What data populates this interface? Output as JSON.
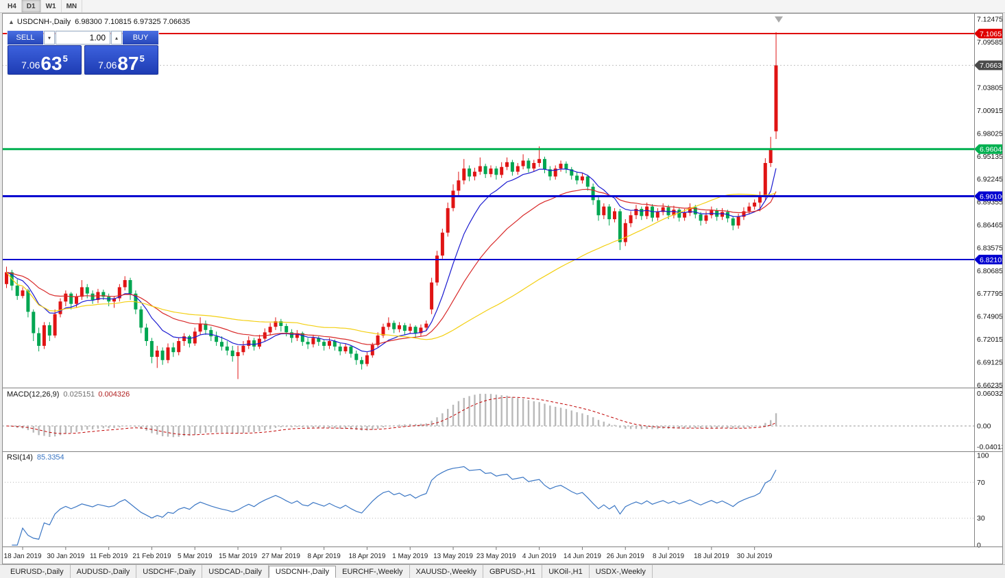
{
  "window": {
    "periods": [
      "H4",
      "D1",
      "W1",
      "MN"
    ],
    "active_period": "D1"
  },
  "chart_header": {
    "collapse_icon": "▲",
    "symbol_title": "USDCNH-,Daily",
    "ohlc": "6.98300 7.10815 6.97325 7.06635"
  },
  "trade_panel": {
    "sell_label": "SELL",
    "buy_label": "BUY",
    "volume": "1.00",
    "volume_down_icon": "▾",
    "volume_up_icon": "▴",
    "sell_price": {
      "prefix": "7.06",
      "big": "63",
      "sup": "5"
    },
    "buy_price": {
      "prefix": "7.06",
      "big": "87",
      "sup": "5"
    }
  },
  "chart_data": {
    "type": "candlestick",
    "symbol": "USDCNH-",
    "timeframe": "Daily",
    "up_color": "#e01414",
    "down_color": "#00a651",
    "price_axis": {
      "min": 6.6592,
      "max": 7.1316,
      "ticks": [
        "7.12475",
        "7.09585",
        "7.06695",
        "7.03805",
        "7.00915",
        "6.98025",
        "6.95135",
        "6.92245",
        "6.89355",
        "6.86465",
        "6.83575",
        "6.80685",
        "6.77795",
        "6.74905",
        "6.72015",
        "6.69125",
        "6.66235"
      ]
    },
    "hlines": [
      {
        "price": 7.10651,
        "label": "7.10651",
        "color": "#df0000",
        "width": 2
      },
      {
        "price": 6.96044,
        "label": "6.96044",
        "color": "#00b050",
        "width": 3
      },
      {
        "price": 6.901,
        "label": "6.90100",
        "color": "#0000d0",
        "width": 3
      },
      {
        "price": 6.82103,
        "label": "6.82103",
        "color": "#0000d0",
        "width": 2
      }
    ],
    "bid_tag": {
      "price": 7.06635,
      "label": "7.06635",
      "color": "#4a4a4a"
    },
    "moving_averages": [
      {
        "period": 10,
        "method": "ema",
        "color": "#1a1ad0"
      },
      {
        "period": 25,
        "method": "ema",
        "color": "#d82828"
      },
      {
        "period": 55,
        "method": "sma",
        "color": "#f3cf10"
      }
    ],
    "x_labels": [
      {
        "i": 3,
        "t": "18 Jan 2019"
      },
      {
        "i": 11,
        "t": "30 Jan 2019"
      },
      {
        "i": 19,
        "t": "11 Feb 2019"
      },
      {
        "i": 27,
        "t": "21 Feb 2019"
      },
      {
        "i": 35,
        "t": "5 Mar 2019"
      },
      {
        "i": 43,
        "t": "15 Mar 2019"
      },
      {
        "i": 51,
        "t": "27 Mar 2019"
      },
      {
        "i": 59,
        "t": "8 Apr 2019"
      },
      {
        "i": 67,
        "t": "18 Apr 2019"
      },
      {
        "i": 75,
        "t": "1 May 2019"
      },
      {
        "i": 83,
        "t": "13 May 2019"
      },
      {
        "i": 91,
        "t": "23 May 2019"
      },
      {
        "i": 99,
        "t": "4 Jun 2019"
      },
      {
        "i": 107,
        "t": "14 Jun 2019"
      },
      {
        "i": 115,
        "t": "26 Jun 2019"
      },
      {
        "i": 123,
        "t": "8 Jul 2019"
      },
      {
        "i": 131,
        "t": "18 Jul 2019"
      },
      {
        "i": 139,
        "t": "30 Jul 2019"
      }
    ],
    "candles": [
      [
        6.79,
        6.812,
        6.785,
        6.805
      ],
      [
        6.805,
        6.808,
        6.782,
        6.788
      ],
      [
        6.788,
        6.796,
        6.77,
        6.775
      ],
      [
        6.775,
        6.786,
        6.772,
        6.782
      ],
      [
        6.782,
        6.784,
        6.748,
        6.755
      ],
      [
        6.755,
        6.758,
        6.718,
        6.728
      ],
      [
        6.728,
        6.735,
        6.705,
        6.712
      ],
      [
        6.712,
        6.742,
        6.708,
        6.738
      ],
      [
        6.738,
        6.742,
        6.718,
        6.725
      ],
      [
        6.725,
        6.758,
        6.722,
        6.752
      ],
      [
        6.752,
        6.772,
        6.748,
        6.768
      ],
      [
        6.768,
        6.782,
        6.762,
        6.778
      ],
      [
        6.778,
        6.78,
        6.758,
        6.765
      ],
      [
        6.765,
        6.778,
        6.76,
        6.774
      ],
      [
        6.774,
        6.795,
        6.77,
        6.786
      ],
      [
        6.786,
        6.79,
        6.772,
        6.778
      ],
      [
        6.778,
        6.782,
        6.765,
        6.77
      ],
      [
        6.77,
        6.784,
        6.766,
        6.78
      ],
      [
        6.78,
        6.783,
        6.77,
        6.774
      ],
      [
        6.774,
        6.778,
        6.762,
        6.768
      ],
      [
        6.768,
        6.775,
        6.76,
        6.772
      ],
      [
        6.772,
        6.79,
        6.768,
        6.786
      ],
      [
        6.786,
        6.8,
        6.782,
        6.795
      ],
      [
        6.795,
        6.798,
        6.77,
        6.778
      ],
      [
        6.778,
        6.782,
        6.752,
        6.758
      ],
      [
        6.758,
        6.762,
        6.728,
        6.735
      ],
      [
        6.735,
        6.74,
        6.712,
        6.718
      ],
      [
        6.718,
        6.722,
        6.69,
        6.698
      ],
      [
        6.698,
        6.712,
        6.684,
        6.706
      ],
      [
        6.706,
        6.71,
        6.688,
        6.694
      ],
      [
        6.694,
        6.715,
        6.69,
        6.71
      ],
      [
        6.71,
        6.716,
        6.698,
        6.704
      ],
      [
        6.704,
        6.722,
        6.7,
        6.718
      ],
      [
        6.718,
        6.728,
        6.712,
        6.724
      ],
      [
        6.724,
        6.726,
        6.71,
        6.715
      ],
      [
        6.715,
        6.735,
        6.712,
        6.73
      ],
      [
        6.73,
        6.748,
        6.726,
        6.74
      ],
      [
        6.74,
        6.744,
        6.726,
        6.732
      ],
      [
        6.732,
        6.736,
        6.718,
        6.724
      ],
      [
        6.724,
        6.73,
        6.712,
        6.717
      ],
      [
        6.717,
        6.724,
        6.706,
        6.711
      ],
      [
        6.711,
        6.718,
        6.7,
        6.706
      ],
      [
        6.706,
        6.712,
        6.692,
        6.699
      ],
      [
        6.699,
        6.712,
        6.67,
        6.704
      ],
      [
        6.704,
        6.718,
        6.7,
        6.712
      ],
      [
        6.712,
        6.724,
        6.708,
        6.719
      ],
      [
        6.719,
        6.722,
        6.706,
        6.711
      ],
      [
        6.711,
        6.726,
        6.708,
        6.721
      ],
      [
        6.721,
        6.734,
        6.718,
        6.729
      ],
      [
        6.729,
        6.741,
        6.725,
        6.736
      ],
      [
        6.736,
        6.748,
        6.732,
        6.743
      ],
      [
        6.743,
        6.746,
        6.73,
        6.737
      ],
      [
        6.737,
        6.74,
        6.724,
        6.729
      ],
      [
        6.729,
        6.733,
        6.716,
        6.722
      ],
      [
        6.722,
        6.732,
        6.718,
        6.728
      ],
      [
        6.728,
        6.73,
        6.712,
        6.717
      ],
      [
        6.717,
        6.722,
        6.708,
        6.714
      ],
      [
        6.714,
        6.726,
        6.71,
        6.722
      ],
      [
        6.722,
        6.724,
        6.712,
        6.717
      ],
      [
        6.717,
        6.72,
        6.706,
        6.712
      ],
      [
        6.712,
        6.722,
        6.708,
        6.718
      ],
      [
        6.718,
        6.72,
        6.706,
        6.711
      ],
      [
        6.711,
        6.715,
        6.7,
        6.705
      ],
      [
        6.705,
        6.715,
        6.702,
        6.711
      ],
      [
        6.711,
        6.713,
        6.697,
        6.702
      ],
      [
        6.702,
        6.706,
        6.688,
        6.694
      ],
      [
        6.694,
        6.698,
        6.682,
        6.689
      ],
      [
        6.689,
        6.704,
        6.686,
        6.7
      ],
      [
        6.7,
        6.716,
        6.697,
        6.713
      ],
      [
        6.713,
        6.729,
        6.71,
        6.725
      ],
      [
        6.725,
        6.74,
        6.722,
        6.736
      ],
      [
        6.736,
        6.748,
        6.732,
        6.741
      ],
      [
        6.741,
        6.744,
        6.728,
        6.733
      ],
      [
        6.733,
        6.742,
        6.729,
        6.738
      ],
      [
        6.738,
        6.741,
        6.726,
        6.731
      ],
      [
        6.731,
        6.74,
        6.727,
        6.736
      ],
      [
        6.736,
        6.738,
        6.722,
        6.728
      ],
      [
        6.728,
        6.739,
        6.724,
        6.735
      ],
      [
        6.735,
        6.744,
        6.731,
        6.74
      ],
      [
        6.758,
        6.798,
        6.752,
        6.792
      ],
      [
        6.792,
        6.832,
        6.788,
        6.826
      ],
      [
        6.826,
        6.86,
        6.822,
        6.855
      ],
      [
        6.855,
        6.893,
        6.85,
        6.886
      ],
      [
        6.886,
        6.916,
        6.882,
        6.908
      ],
      [
        6.908,
        6.932,
        6.902,
        6.921
      ],
      [
        6.921,
        6.948,
        6.916,
        6.936
      ],
      [
        6.936,
        6.94,
        6.92,
        6.926
      ],
      [
        6.926,
        6.937,
        6.921,
        6.932
      ],
      [
        6.932,
        6.95,
        6.928,
        6.939
      ],
      [
        6.939,
        6.942,
        6.924,
        6.929
      ],
      [
        6.929,
        6.94,
        6.925,
        6.936
      ],
      [
        6.936,
        6.939,
        6.922,
        6.928
      ],
      [
        6.928,
        6.944,
        6.924,
        6.938
      ],
      [
        6.938,
        6.95,
        6.934,
        6.944
      ],
      [
        6.944,
        6.947,
        6.927,
        6.932
      ],
      [
        6.932,
        6.943,
        6.928,
        6.939
      ],
      [
        6.939,
        6.954,
        6.935,
        6.946
      ],
      [
        6.946,
        6.949,
        6.931,
        6.936
      ],
      [
        6.936,
        6.947,
        6.932,
        6.943
      ],
      [
        6.943,
        6.964,
        6.938,
        6.948
      ],
      [
        6.948,
        6.951,
        6.93,
        6.935
      ],
      [
        6.935,
        6.939,
        6.921,
        6.926
      ],
      [
        6.926,
        6.94,
        6.922,
        6.936
      ],
      [
        6.936,
        6.946,
        6.932,
        6.942
      ],
      [
        6.942,
        6.945,
        6.93,
        6.935
      ],
      [
        6.935,
        6.938,
        6.922,
        6.927
      ],
      [
        6.927,
        6.932,
        6.916,
        6.921
      ],
      [
        6.921,
        6.93,
        6.917,
        6.926
      ],
      [
        6.926,
        6.928,
        6.908,
        6.913
      ],
      [
        6.913,
        6.917,
        6.89,
        6.896
      ],
      [
        6.896,
        6.9,
        6.87,
        6.877
      ],
      [
        6.877,
        6.892,
        6.872,
        6.888
      ],
      [
        6.888,
        6.891,
        6.864,
        6.872
      ],
      [
        6.872,
        6.886,
        6.868,
        6.882
      ],
      [
        6.882,
        6.885,
        6.833,
        6.843
      ],
      [
        6.843,
        6.872,
        6.838,
        6.867
      ],
      [
        6.867,
        6.882,
        6.862,
        6.877
      ],
      [
        6.877,
        6.89,
        6.872,
        6.885
      ],
      [
        6.885,
        6.888,
        6.871,
        6.876
      ],
      [
        6.876,
        6.893,
        6.872,
        6.888
      ],
      [
        6.888,
        6.891,
        6.869,
        6.874
      ],
      [
        6.874,
        6.886,
        6.87,
        6.881
      ],
      [
        6.881,
        6.892,
        6.877,
        6.887
      ],
      [
        6.887,
        6.89,
        6.872,
        6.877
      ],
      [
        6.877,
        6.889,
        6.873,
        6.884
      ],
      [
        6.884,
        6.887,
        6.869,
        6.874
      ],
      [
        6.874,
        6.885,
        6.87,
        6.88
      ],
      [
        6.88,
        6.892,
        6.876,
        6.887
      ],
      [
        6.887,
        6.89,
        6.873,
        6.878
      ],
      [
        6.878,
        6.881,
        6.864,
        6.87
      ],
      [
        6.87,
        6.882,
        6.866,
        6.877
      ],
      [
        6.877,
        6.888,
        6.873,
        6.883
      ],
      [
        6.883,
        6.886,
        6.87,
        6.875
      ],
      [
        6.875,
        6.886,
        6.871,
        6.881
      ],
      [
        6.881,
        6.884,
        6.868,
        6.873
      ],
      [
        6.873,
        6.876,
        6.858,
        6.864
      ],
      [
        6.864,
        6.879,
        6.86,
        6.875
      ],
      [
        6.875,
        6.887,
        6.871,
        6.882
      ],
      [
        6.882,
        6.893,
        6.878,
        6.888
      ],
      [
        6.888,
        6.897,
        6.884,
        6.893
      ],
      [
        6.893,
        6.907,
        6.882,
        6.902
      ],
      [
        6.902,
        6.949,
        6.896,
        6.943
      ],
      [
        6.943,
        6.976,
        6.938,
        6.961
      ],
      [
        6.983,
        7.10815,
        6.97325,
        7.06635
      ]
    ],
    "macd": {
      "name": "MACD(12,26,9)",
      "value_main": "0.025151",
      "value_signal": "0.004326",
      "fast": 12,
      "slow": 26,
      "signal": 9,
      "axis_max": "0.060329",
      "axis_zero": "0.00",
      "axis_min": "-0.040135",
      "hist_color": "#b9b9b9",
      "signal_color": "#c00000"
    },
    "rsi": {
      "name": "RSI(14)",
      "value": "85.3354",
      "period": 14,
      "axis": [
        "100",
        "70",
        "30",
        "0"
      ],
      "levels": [
        70,
        30
      ],
      "color": "#3a76c4"
    }
  },
  "bottom_tabs": {
    "active": "USDCNH-,Daily",
    "tabs": [
      "EURUSD-,Daily",
      "AUDUSD-,Daily",
      "USDCHF-,Daily",
      "USDCAD-,Daily",
      "USDCNH-,Daily",
      "EURCHF-,Weekly",
      "XAUUSD-,Weekly",
      "GBPUSD-,H1",
      "UKOil-,H1",
      "USDX-,Weekly"
    ]
  }
}
